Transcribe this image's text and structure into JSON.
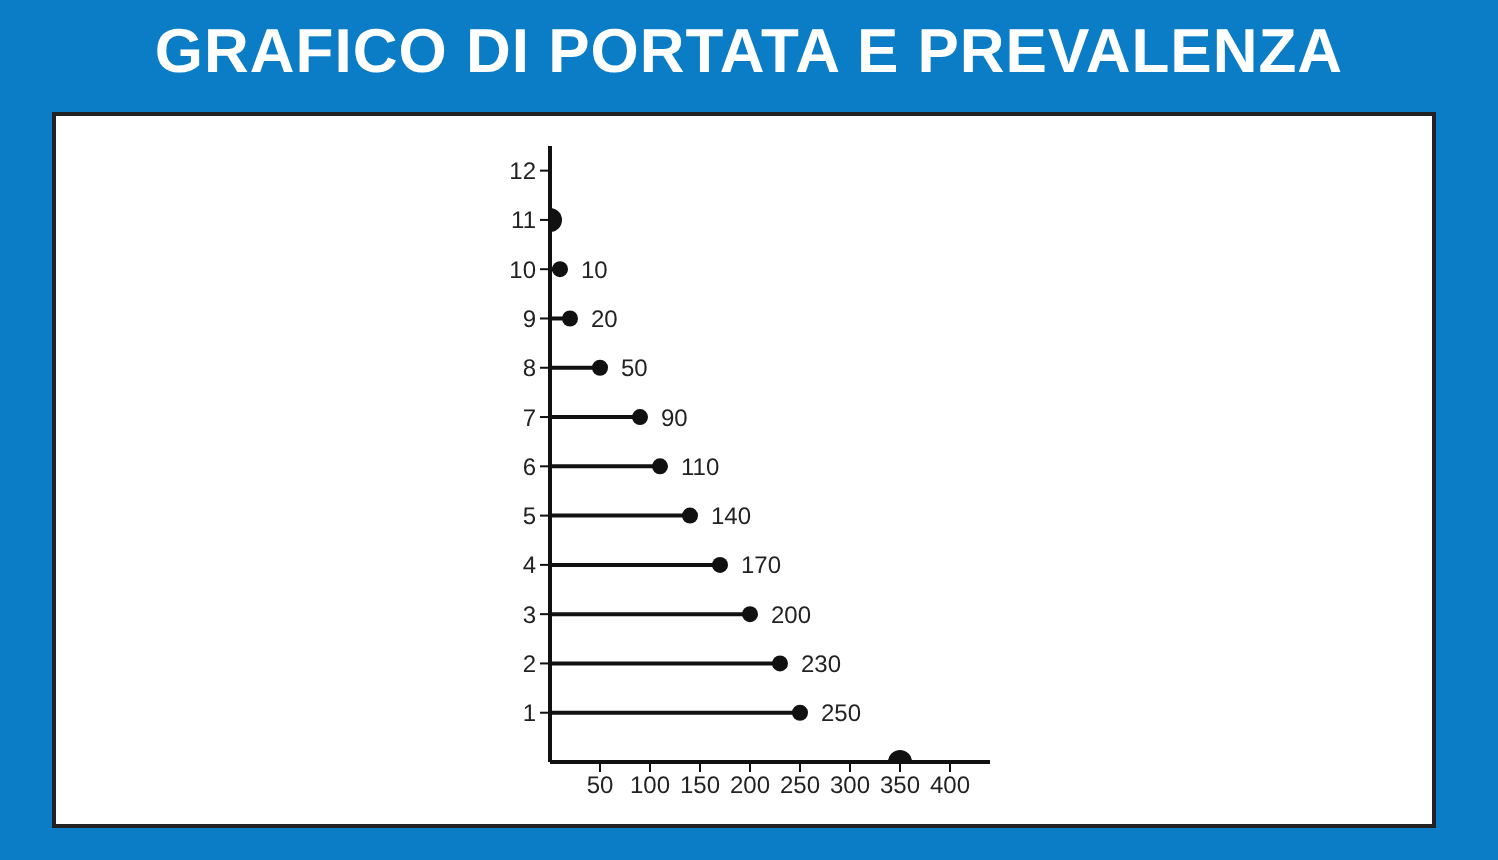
{
  "chart_data": {
    "type": "lollipop",
    "orientation": "horizontal",
    "title": "GRAFICO DI PORTATA E PREVALENZA",
    "marker": "circle",
    "xlim": [
      0,
      440
    ],
    "xticks": [
      50,
      100,
      150,
      200,
      250,
      300,
      350,
      400
    ],
    "ylim": [
      0,
      12.5
    ],
    "yticks": [
      1,
      2,
      3,
      4,
      5,
      6,
      7,
      8,
      9,
      10,
      11,
      12
    ],
    "series": [
      {
        "type": "lollipop",
        "color": "#111111",
        "x": [
          10,
          9,
          8,
          7,
          6,
          5,
          4,
          3,
          2,
          1
        ],
        "values": [
          10,
          20,
          50,
          90,
          110,
          140,
          170,
          200,
          230,
          250
        ],
        "data_labels": true
      },
      {
        "type": "scatter",
        "color": "#111111",
        "x": [
          11,
          0
        ],
        "values": [
          0,
          350
        ]
      }
    ]
  }
}
